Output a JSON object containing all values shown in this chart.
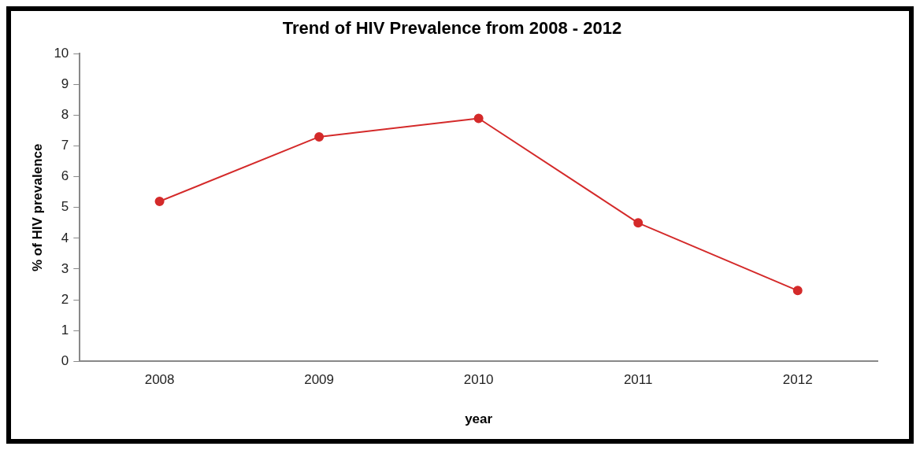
{
  "chart_data": {
    "type": "line",
    "title": "Trend of HIV Prevalence from 2008 - 2012",
    "xlabel": "year",
    "ylabel": "% of HIV prevalence",
    "categories": [
      "2008",
      "2009",
      "2010",
      "2011",
      "2012"
    ],
    "series": [
      {
        "color": "#d42a2a",
        "values": [
          5.2,
          7.3,
          7.9,
          4.5,
          2.3
        ]
      }
    ],
    "ylim": [
      0,
      10
    ],
    "yticks": [
      0,
      1,
      2,
      3,
      4,
      5,
      6,
      7,
      8,
      9,
      10
    ],
    "grid": false,
    "legend": false,
    "marker": "circle",
    "line_style": "solid"
  }
}
